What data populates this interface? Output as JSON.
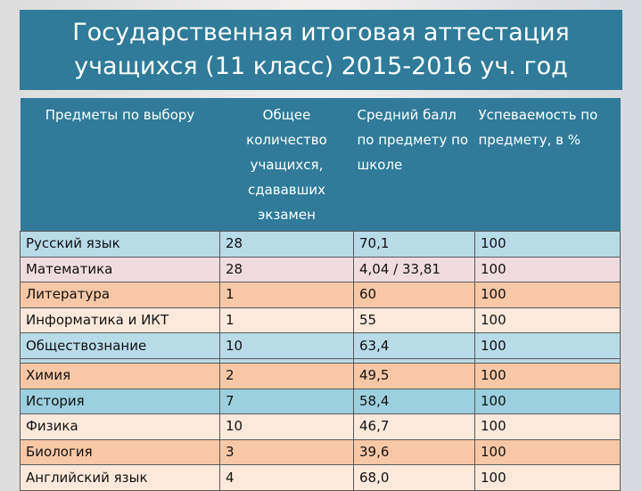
{
  "title": {
    "line1": "Государственная итоговая аттестация",
    "line2_part1": "учащихся (11 класс)",
    "line2_part2": " 2015-2016 уч. год"
  },
  "table": {
    "headers": [
      "Предметы по выбору",
      "Общее количество учащихся, сдававших экзамен",
      "Средний балл по предмету по школе",
      "Успеваемость по предмету, в %"
    ],
    "rows": [
      {
        "subject": "Русский язык",
        "count": "28",
        "avg": "70,1",
        "success": "100"
      },
      {
        "subject": "Математика",
        "count": "28",
        "avg": "4,04 / 33,81",
        "success": "100"
      },
      {
        "subject": "Литература",
        "count": "1",
        "avg": "60",
        "success": "100"
      },
      {
        "subject": "Информатика и ИКТ",
        "count": "1",
        "avg": "55",
        "success": "100"
      },
      {
        "subject": "Обществознание",
        "count": "10",
        "avg": "63,4",
        "success": "100"
      },
      {
        "subject": "Химия",
        "count": "2",
        "avg": "49,5",
        "success": "100"
      },
      {
        "subject": "История",
        "count": "7",
        "avg": "58,4",
        "success": "100"
      },
      {
        "subject": "Физика",
        "count": "10",
        "avg": "46,7",
        "success": "100"
      },
      {
        "subject": "Биология",
        "count": "3",
        "avg": "39,6",
        "success": "100"
      },
      {
        "subject": "Английский язык",
        "count": "4",
        "avg": "68,0",
        "success": "100"
      }
    ]
  },
  "colors": {
    "header_bg": "#2f7b99",
    "row_colors": [
      "#b8dbe8",
      "#efdcdf",
      "#f8c8a6",
      "#fde9dc",
      "#b8dbe8",
      "#f8c8a6",
      "#9ccfe0",
      "#fde9dc",
      "#f8c8a6",
      "#fde9dc"
    ]
  }
}
